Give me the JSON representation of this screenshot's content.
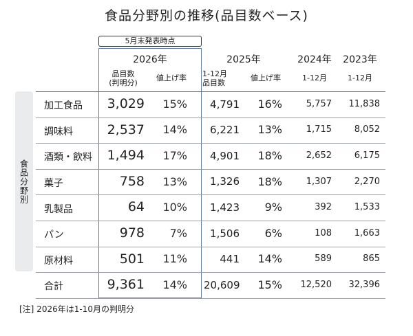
{
  "title": "食品分野別の推移(品目数ベース)",
  "side_label": "食品分野別",
  "tag": "5月末発表時点",
  "years": {
    "y2026": "2026年",
    "y2025": "2025年",
    "y2024": "2024年",
    "y2023": "2023年"
  },
  "subheaders": {
    "y2026_count": "品目数\n(判明分)",
    "y2026_rate": "値上げ率",
    "y2025_count": "1-12月\n品目数",
    "y2025_rate": "値上げ率",
    "y2024_period": "1-12月",
    "y2023_period": "1-12月"
  },
  "rows": [
    {
      "cat": "加工食品",
      "c26": "3,029",
      "r26": "15%",
      "c25": "4,791",
      "r25": "16%",
      "c24": "5,757",
      "c23": "11,838"
    },
    {
      "cat": "調味料",
      "c26": "2,537",
      "r26": "14%",
      "c25": "6,221",
      "r25": "13%",
      "c24": "1,715",
      "c23": "8,052"
    },
    {
      "cat": "酒類・飲料",
      "c26": "1,494",
      "r26": "17%",
      "c25": "4,901",
      "r25": "18%",
      "c24": "2,652",
      "c23": "6,175"
    },
    {
      "cat": "菓子",
      "c26": "758",
      "r26": "13%",
      "c25": "1,326",
      "r25": "18%",
      "c24": "1,307",
      "c23": "2,270"
    },
    {
      "cat": "乳製品",
      "c26": "64",
      "r26": "10%",
      "c25": "1,423",
      "r25": "9%",
      "c24": "392",
      "c23": "1,533"
    },
    {
      "cat": "パン",
      "c26": "978",
      "r26": "7%",
      "c25": "1,506",
      "r25": "6%",
      "c24": "108",
      "c23": "1,663"
    },
    {
      "cat": "原材料",
      "c26": "501",
      "r26": "11%",
      "c25": "441",
      "r25": "14%",
      "c24": "589",
      "c23": "865"
    },
    {
      "cat": "合計",
      "c26": "9,361",
      "r26": "14%",
      "c25": "20,609",
      "r25": "15%",
      "c24": "12,520",
      "c23": "32,396"
    }
  ],
  "note": "[注] 2026年は1-10月の判明分",
  "colors": {
    "highlight_border": "#5f7fa0",
    "side_bg": "#e9ebed"
  }
}
